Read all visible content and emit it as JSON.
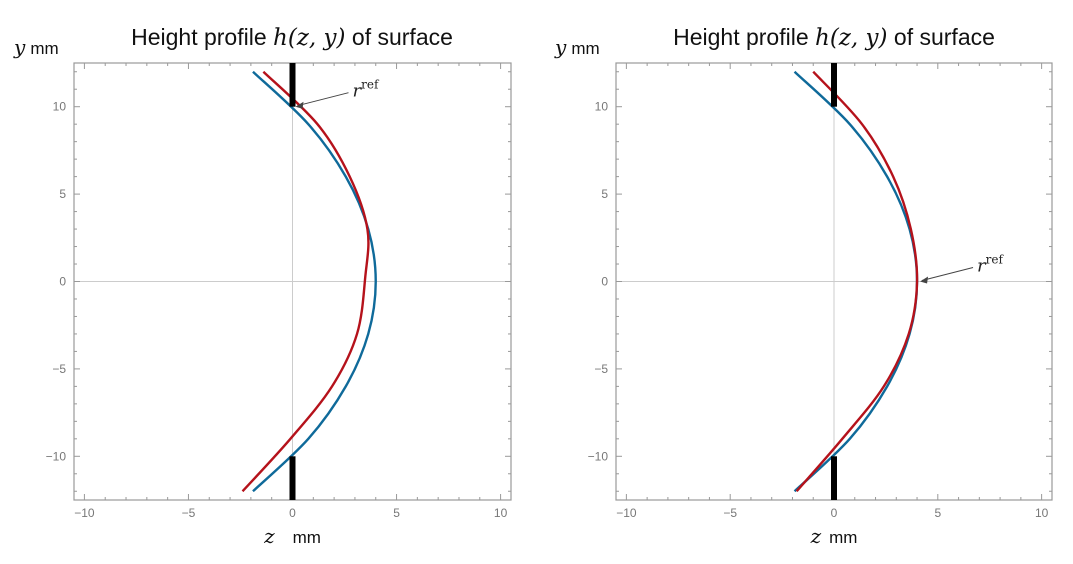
{
  "chart_data": [
    {
      "type": "line",
      "title_prefix": "Height profile ",
      "title_math": "h(z, y)",
      "title_suffix": " of surface",
      "xlabel_var": "z",
      "xlabel_unit": "mm",
      "ylabel_var": "y",
      "ylabel_unit": "mm",
      "xlim": [
        -10.5,
        10.5
      ],
      "ylim": [
        -12.5,
        12.5
      ],
      "xticks": [
        -10,
        -5,
        0,
        5,
        10
      ],
      "xtick_labels": [
        "−10",
        "−5",
        "0",
        "5",
        "10"
      ],
      "yticks": [
        -10,
        -5,
        0,
        5,
        10
      ],
      "ytick_labels": [
        "−10",
        "−5",
        "0",
        "5",
        "10"
      ],
      "annotation": {
        "label": "r",
        "superscript": "ref",
        "at": [
          0,
          10
        ]
      },
      "apertures": [
        {
          "z": 0,
          "y_from": 10,
          "y_to": 12.5
        },
        {
          "z": 0,
          "y_from": -12.5,
          "y_to": -10
        }
      ],
      "series": [
        {
          "name": "blue",
          "color": "#0f6a9a",
          "y": [
            12,
            9,
            6,
            3,
            0,
            -3,
            -6,
            -9,
            -12
          ],
          "z": [
            -1.9,
            0.76,
            2.56,
            3.64,
            4.0,
            3.64,
            2.56,
            0.76,
            -1.9
          ]
        },
        {
          "name": "red",
          "color": "#b5121b",
          "y": [
            12,
            9,
            6,
            3,
            0.3,
            -3,
            -6,
            -9,
            -12
          ],
          "z": [
            -1.4,
            1.2,
            2.75,
            3.6,
            3.5,
            3.1,
            1.9,
            -0.1,
            -2.4
          ]
        }
      ]
    },
    {
      "type": "line",
      "title_prefix": "Height profile ",
      "title_math": "h(z, y)",
      "title_suffix": " of surface",
      "xlabel_var": "z",
      "xlabel_unit": "mm",
      "ylabel_var": "y",
      "ylabel_unit": "mm",
      "xlim": [
        -10.5,
        10.5
      ],
      "ylim": [
        -12.5,
        12.5
      ],
      "xticks": [
        -10,
        -5,
        0,
        5,
        10
      ],
      "xtick_labels": [
        "−10",
        "−5",
        "0",
        "5",
        "10"
      ],
      "yticks": [
        -10,
        -5,
        0,
        5,
        10
      ],
      "ytick_labels": [
        "−10",
        "−5",
        "0",
        "5",
        "10"
      ],
      "annotation": {
        "label": "r",
        "superscript": "ref",
        "at": [
          4,
          0
        ]
      },
      "apertures": [
        {
          "z": 0,
          "y_from": 10,
          "y_to": 12.5
        },
        {
          "z": 0,
          "y_from": -12.5,
          "y_to": -10
        }
      ],
      "series": [
        {
          "name": "blue",
          "color": "#0f6a9a",
          "y": [
            12,
            9,
            6,
            3,
            0,
            -3,
            -6,
            -9,
            -12
          ],
          "z": [
            -1.9,
            0.76,
            2.56,
            3.64,
            4.0,
            3.64,
            2.56,
            0.76,
            -1.9
          ]
        },
        {
          "name": "red",
          "color": "#b5121b",
          "y": [
            12,
            9,
            6,
            3,
            0,
            -3,
            -6,
            -9,
            -12
          ],
          "z": [
            -1.0,
            1.35,
            2.85,
            3.7,
            4.0,
            3.6,
            2.4,
            0.4,
            -1.8
          ]
        }
      ]
    }
  ]
}
